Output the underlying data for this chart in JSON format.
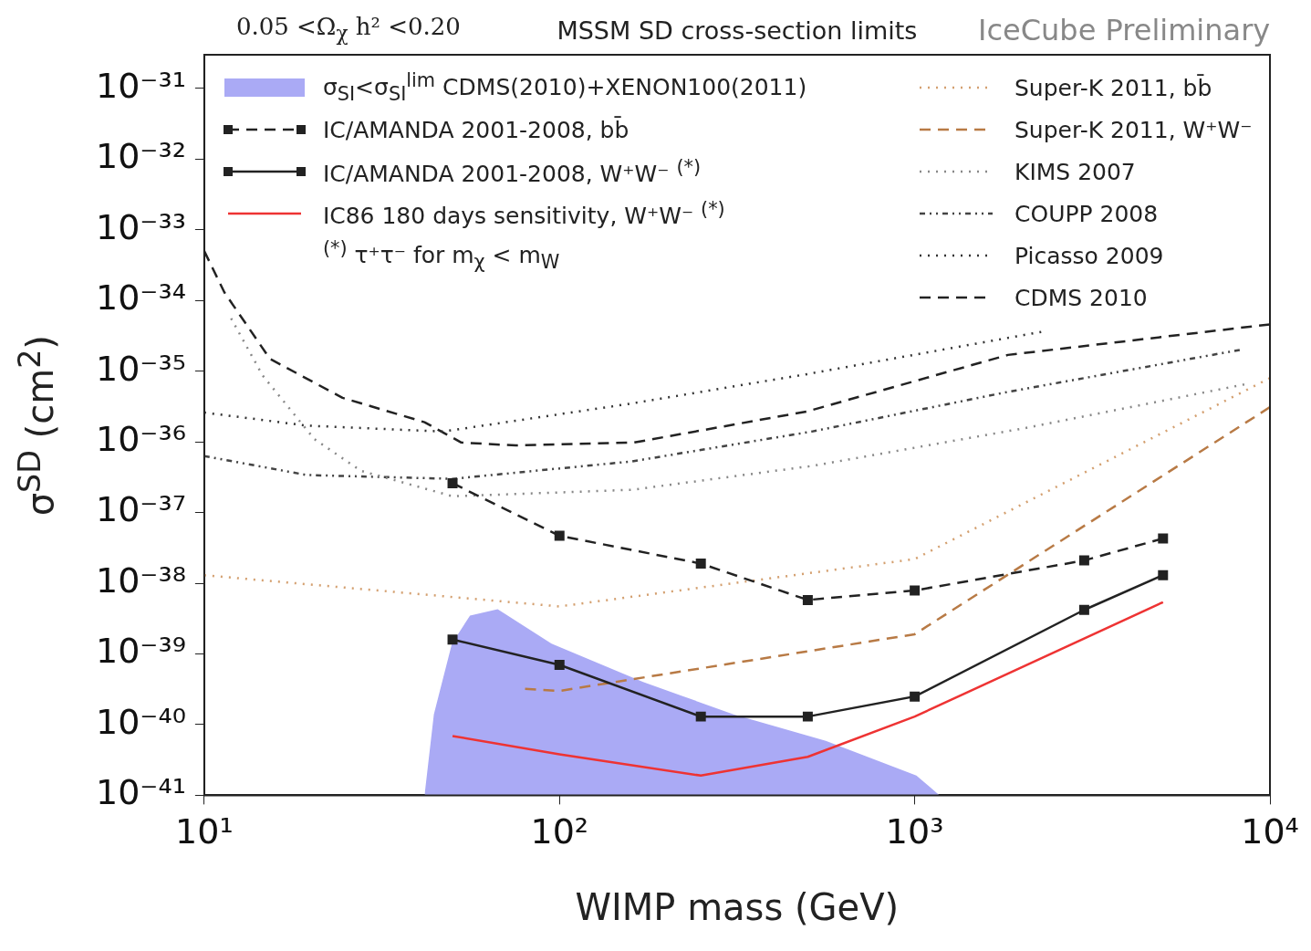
{
  "chart_data": {
    "type": "line",
    "title": "MSSM SD cross-section limits",
    "xlabel": "WIMP mass (GeV)",
    "ylabel": "σ$^{SD}$  (cm$^{2}$)",
    "annotations": [
      "0.05 <Ω$_{χ}$ h² <0.20",
      "IceCube Preliminary",
      "$^{(*)}$ τ⁺τ⁻ for m$_{χ}$ < m$_{W}$"
    ],
    "log": "xy",
    "grid": false,
    "legend": "top",
    "xlim": [
      10,
      10000
    ],
    "ylim": [
      1e-41,
      3e-31
    ],
    "xticks": [
      {
        "value": 10,
        "label": "10¹"
      },
      {
        "value": 100,
        "label": "10²"
      },
      {
        "value": 1000,
        "label": "10³"
      },
      {
        "value": 10000,
        "label": "10⁴"
      }
    ],
    "yticks": [
      {
        "value": 1e-41,
        "label": "10⁻⁴¹"
      },
      {
        "value": 1e-40,
        "label": "10⁻⁴⁰"
      },
      {
        "value": 1e-39,
        "label": "10⁻³⁹"
      },
      {
        "value": 1e-38,
        "label": "10⁻³⁸"
      },
      {
        "value": 1e-37,
        "label": "10⁻³⁷"
      },
      {
        "value": 1e-36,
        "label": "10⁻³⁶"
      },
      {
        "value": 1e-35,
        "label": "10⁻³⁵"
      },
      {
        "value": 1e-34,
        "label": "10⁻³⁴"
      },
      {
        "value": 1e-33,
        "label": "10⁻³³"
      },
      {
        "value": 1e-32,
        "label": "10⁻³²"
      },
      {
        "value": 1e-31,
        "label": "10⁻³¹"
      }
    ],
    "series": [
      {
        "name": "σ$_{SI}$<σ$_{SI}$$^{lim}$ CDMS(2010)+XENON100(2011)",
        "type": "area",
        "color": "#aaaaf5",
        "x": [
          41.7,
          44.3,
          49.8,
          56,
          67,
          95,
          172,
          309,
          562,
          1011,
          1175
        ],
        "values": [
          1e-41,
          1.4e-40,
          1.4e-39,
          3.5e-39,
          4.3e-39,
          1.4e-39,
          4e-40,
          1.4e-40,
          5.9e-41,
          1.9e-41,
          1e-41
        ]
      },
      {
        "name": "IC/AMANDA 2001-2008, bb̄",
        "color": "#222222",
        "line_style": "dashed",
        "marker": "square",
        "x": [
          50,
          100,
          250,
          500,
          1000,
          3000,
          5000
        ],
        "values": [
          2.6e-37,
          4.7e-38,
          1.9e-38,
          5.8e-39,
          7.9e-39,
          2.1e-38,
          4.3e-38
        ]
      },
      {
        "name": "IC/AMANDA 2001-2008, W⁺W⁻ $^{(*)}$",
        "color": "#222222",
        "line_style": "solid",
        "marker": "square",
        "x": [
          50,
          100,
          250,
          500,
          1000,
          3000,
          5000
        ],
        "values": [
          1.6e-39,
          7e-40,
          1.3e-40,
          1.3e-40,
          2.5e-40,
          4.2e-39,
          1.3e-38
        ]
      },
      {
        "name": "IC86 180 days sensitivity, W⁺W⁻ $^{(*)}$",
        "color": "#ee3333",
        "line_style": "solid",
        "marker": "none",
        "x": [
          50,
          100,
          250,
          500,
          1000,
          5000
        ],
        "values": [
          6.9e-41,
          3.8e-41,
          1.9e-41,
          3.5e-41,
          1.3e-40,
          5.4e-39
        ]
      },
      {
        "name": "Super-K 2011, bb̄",
        "color": "#d4a070",
        "line_style": "dotted",
        "marker": "none",
        "x": [
          10,
          100,
          1000,
          10000
        ],
        "values": [
          1.3e-38,
          4.7e-39,
          2.2e-38,
          8e-36
        ]
      },
      {
        "name": "Super-K 2011, W⁺W⁻",
        "color": "#b87a45",
        "line_style": "dashed",
        "marker": "none",
        "x": [
          80,
          100,
          1000,
          10000
        ],
        "values": [
          3.2e-40,
          3e-40,
          1.9e-39,
          3.1e-36
        ]
      },
      {
        "name": "KIMS 2007",
        "color": "#888888",
        "line_style": "dotted",
        "marker": "none",
        "x": [
          11.9,
          14.6,
          20.4,
          27.6,
          50,
          160,
          519,
          2090,
          8470
        ],
        "values": [
          5.6e-35,
          8.7e-36,
          1.1e-36,
          3.9e-37,
          1.7e-37,
          2.1e-37,
          4.6e-37,
          1.6e-36,
          6.5e-36
        ]
      },
      {
        "name": "COUPP 2008",
        "color": "#444444",
        "line_style": "dashdot",
        "marker": "none",
        "x": [
          10,
          19.4,
          50,
          160,
          513,
          1830,
          8220
        ],
        "values": [
          6.3e-37,
          3.4e-37,
          3e-37,
          5.3e-37,
          1.4e-36,
          5.1e-36,
          2e-35
        ]
      },
      {
        "name": "Picasso 2009",
        "color": "#333333",
        "line_style": "dotted",
        "marker": "none",
        "x": [
          10,
          19.4,
          47,
          160,
          498,
          2270
        ],
        "values": [
          2.6e-36,
          1.7e-36,
          1.4e-36,
          3.5e-36,
          9.1e-36,
          3.6e-35
        ]
      },
      {
        "name": "CDMS 2010",
        "color": "#222222",
        "line_style": "dashed",
        "marker": "none",
        "x": [
          10,
          11.4,
          15.3,
          24.5,
          41.7,
          52.9,
          75.4,
          162,
          498,
          1830,
          10000
        ],
        "values": [
          5e-34,
          1.3e-34,
          1.5e-35,
          4.2e-36,
          1.9e-36,
          9.8e-37,
          8.9e-37,
          9.8e-37,
          2.7e-36,
          1.7e-35,
          4.6e-35
        ]
      }
    ]
  }
}
